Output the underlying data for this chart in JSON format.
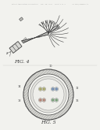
{
  "bg_color": "#f2f2ee",
  "header_text": "Patent Application Publication   Sep. 08, 2016   Sheet 2 of 3        US 2016/0000000 A1",
  "fig4_label": "FIG. 4",
  "fig5_label": "FIG. 5",
  "lc": "#777777",
  "dc": "#444444"
}
